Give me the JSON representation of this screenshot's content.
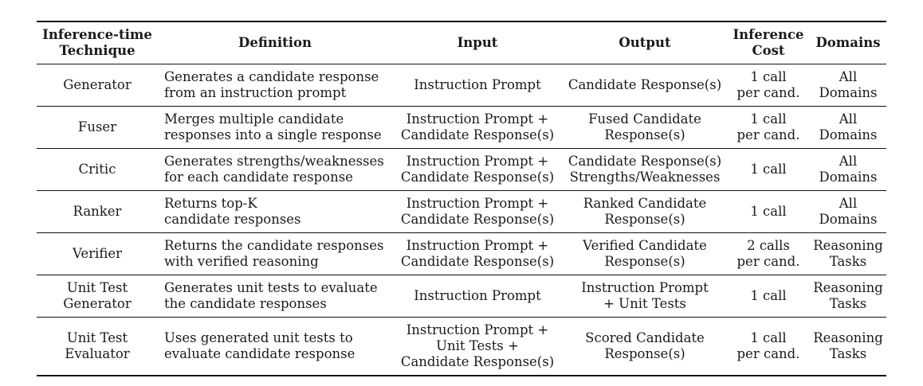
{
  "table": {
    "headers": [
      "Inference-time\nTechnique",
      "Definition",
      "Input",
      "Output",
      "Inference\nCost",
      "Domains"
    ],
    "rows": [
      {
        "technique": "Generator",
        "definition": "Generates a candidate response\nfrom an instruction prompt",
        "input": "Instruction Prompt",
        "output": "Candidate Response(s)",
        "cost": "1 call\nper cand.",
        "domains": "All\nDomains"
      },
      {
        "technique": "Fuser",
        "definition": "Merges multiple candidate\nresponses into a single response",
        "input": "Instruction Prompt +\nCandidate Response(s)",
        "output": "Fused Candidate\nResponse(s)",
        "cost": "1 call\nper cand.",
        "domains": "All\nDomains"
      },
      {
        "technique": "Critic",
        "definition": "Generates strengths/weaknesses\nfor each candidate response",
        "input": "Instruction Prompt +\nCandidate Response(s)",
        "output": "Candidate Response(s)\nStrengths/Weaknesses",
        "cost": "1 call",
        "domains": "All\nDomains"
      },
      {
        "technique": "Ranker",
        "definition": "Returns top-K\ncandidate responses",
        "input": "Instruction Prompt +\nCandidate Response(s)",
        "output": "Ranked Candidate\nResponse(s)",
        "cost": "1 call",
        "domains": "All\nDomains"
      },
      {
        "technique": "Verifier",
        "definition": "Returns the candidate responses\nwith verified reasoning",
        "input": "Instruction Prompt +\nCandidate Response(s)",
        "output": "Verified Candidate\nResponse(s)",
        "cost": "2 calls\nper cand.",
        "domains": "Reasoning\nTasks"
      },
      {
        "technique": "Unit Test\nGenerator",
        "definition": "Generates unit tests to evaluate\nthe candidate responses",
        "input": "Instruction Prompt",
        "output": "Instruction Prompt\n+ Unit Tests",
        "cost": "1 call",
        "domains": "Reasoning\nTasks"
      },
      {
        "technique": "Unit Test\nEvaluator",
        "definition": "Uses generated unit tests to\nevaluate candidate response",
        "input": "Instruction Prompt +\nUnit Tests +\nCandidate Response(s)",
        "output": "Scored Candidate\nResponse(s)",
        "cost": "1 call\nper cand.",
        "domains": "Reasoning\nTasks"
      }
    ]
  }
}
